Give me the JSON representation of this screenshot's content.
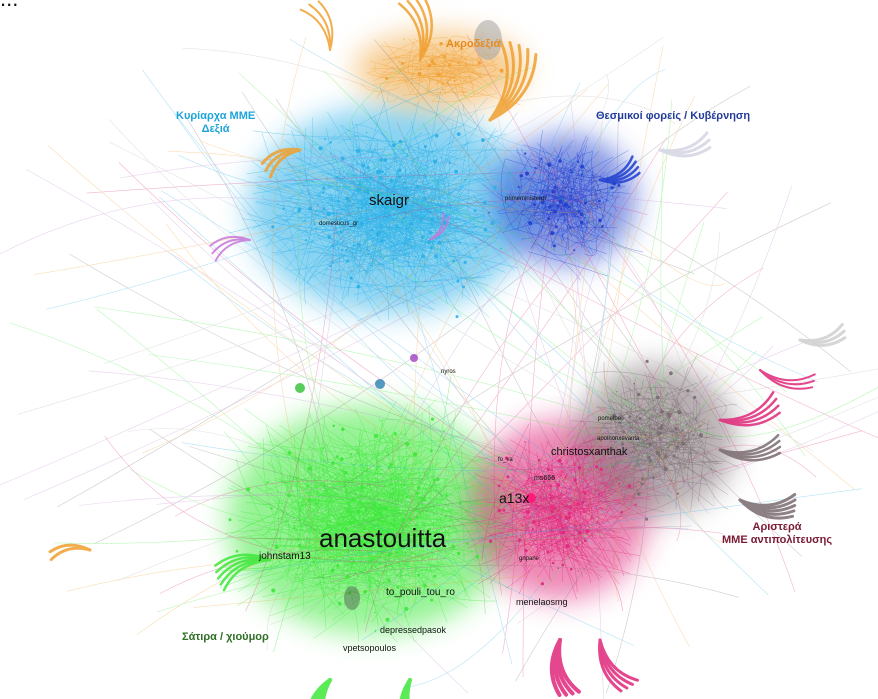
{
  "title_fragment": "...",
  "colors": {
    "far_right": "#f0a030",
    "mainstream_right": "#2ab0e8",
    "institutions": "#1f3fcf",
    "satire": "#3ee83a",
    "left": "#e0287a",
    "grey": "#7a6c70",
    "label_far_right": "#e58b1f",
    "label_mainstream": "#1ea4d9",
    "label_institutions": "#233c9a",
    "label_satire": "#2e6e25",
    "label_left": "#7a1b34"
  },
  "clusters": {
    "far_right": "Ακροδεξιά",
    "mainstream_line1": "Κυρίαρχα ΜΜΕ",
    "mainstream_line2": "Δεξιά",
    "institutions": "Θεσμικοί φορείς / Κυβέρνηση",
    "satire": "Σάτιρα / χιούμορ",
    "left_line1": "Αριστερά",
    "left_line2": "ΜΜΕ αντιπολίτευσης"
  },
  "nodes": {
    "skaigr": "skaigr",
    "anastouitta": "anastouitta",
    "christosxanthak": "christosxanthak",
    "a13x": "a13x",
    "johnstam13": "johnstam13",
    "to_pouli_tou_ro": "to_pouli_tou_ro",
    "depressedpasok": "depressedpasok",
    "vpetsopoulos": "vpetsopoulos",
    "menelaosmg": "menelaosmg",
    "domesticus_gr": "domesticus_gr",
    "primeministergr": "primeministergr",
    "ms666": "ms666",
    "nyros": "nyros",
    "kostantinosxanthak": "apolnonxevanta",
    "pomelbe": "pomelbe",
    "fo_va": "fo_va",
    "giorgos": "gnpane"
  }
}
